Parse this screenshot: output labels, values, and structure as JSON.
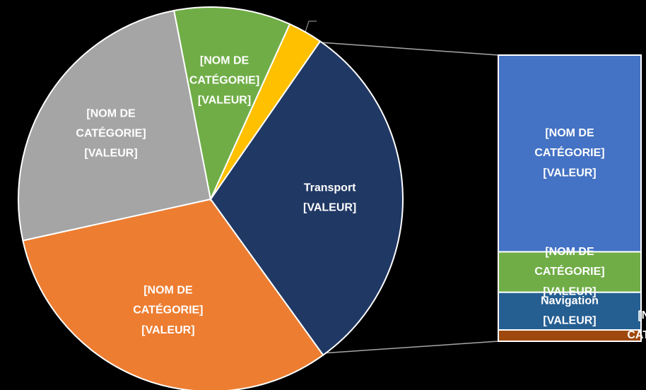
{
  "chart_data": {
    "type": "pie",
    "categories": [
      null,
      "Transport",
      "[NOM DE CATÉGORIE]",
      "[NOM DE CATÉGORIE]",
      "[NOM DE CATÉGORIE]"
    ],
    "values": [
      2.9,
      30.4,
      31.5,
      25.4,
      9.8
    ],
    "value_labels": [
      null,
      "[VALEUR]",
      "[VALEUR]",
      "[VALEUR]",
      "[VALEUR]"
    ],
    "colors": [
      "#ffc000",
      "#203864",
      "#ed7d31",
      "#a5a5a5",
      "#70ad47"
    ],
    "breakdown": {
      "categories": [
        "[NOM DE CATÉGORIE]",
        "[NOM DE CATÉGORIE]",
        "Navigation",
        "[NOM DE CATÉGORIE]"
      ],
      "values": [
        20.9,
        4.3,
        4.0,
        1.2
      ],
      "value_labels": [
        "[VALEUR]",
        "[VALEUR]",
        "[VALEUR]",
        null
      ],
      "colors": [
        "#4472c4",
        "#70ad47",
        "#255e91",
        "#9e480e"
      ]
    }
  }
}
